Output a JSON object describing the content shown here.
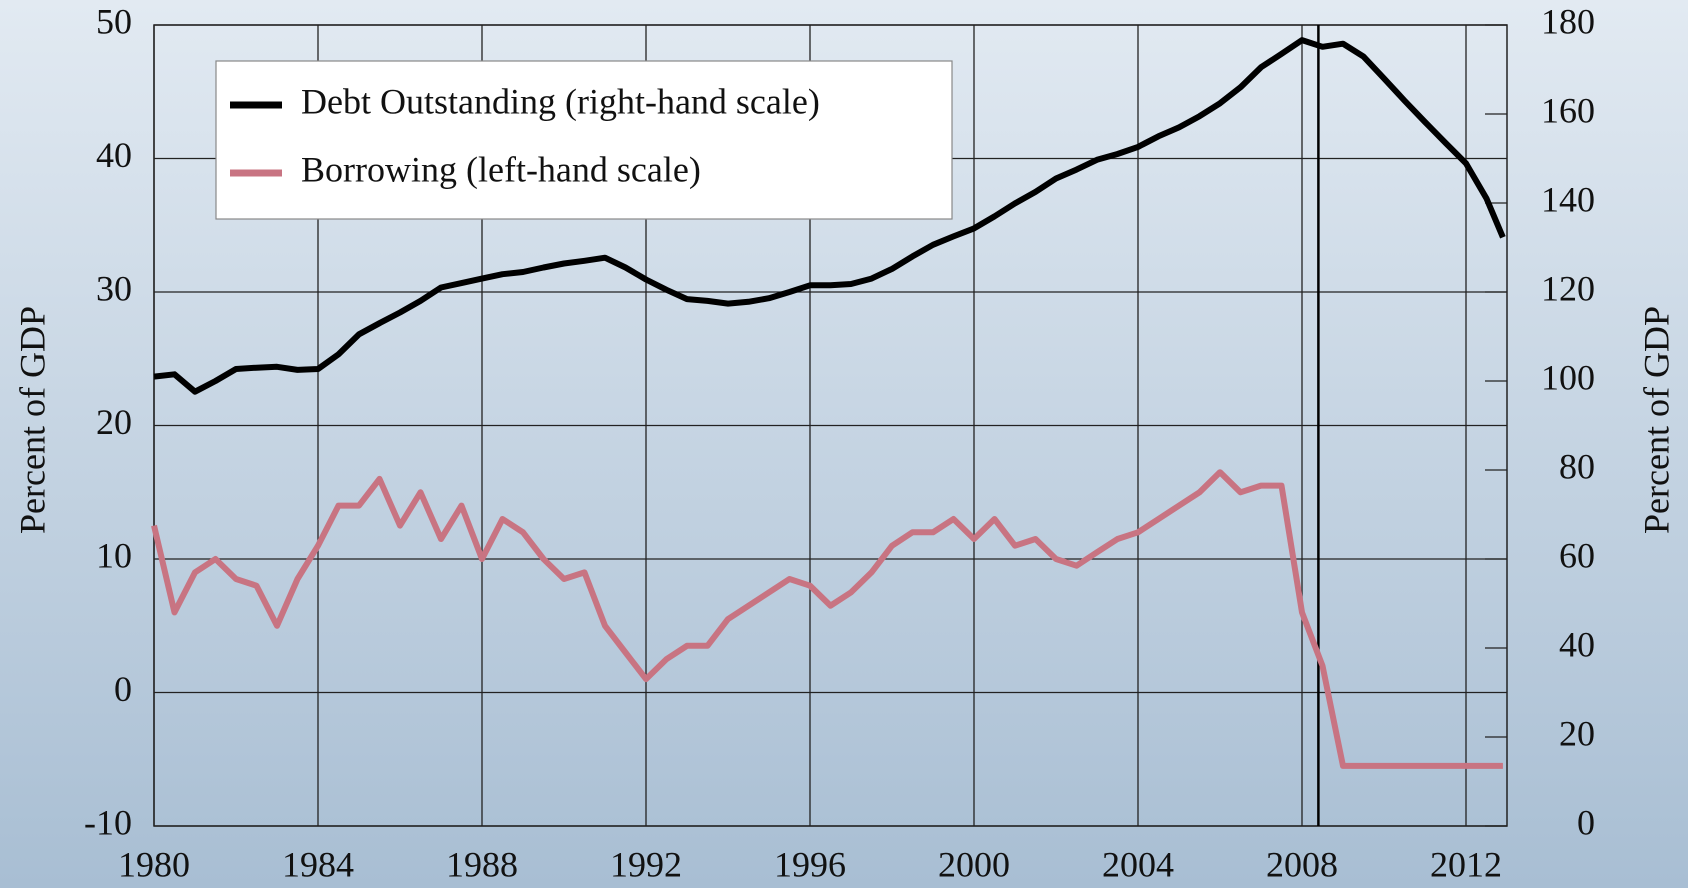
{
  "chart_data": {
    "type": "line",
    "ylabel": "Percent of GDP",
    "y2label": "Percent of GDP",
    "xlim": [
      1980,
      2013
    ],
    "xticks": [
      1980,
      1984,
      1988,
      1992,
      1996,
      2000,
      2004,
      2008,
      2012
    ],
    "ylim": [
      -10,
      50
    ],
    "yticks": [
      -10,
      0,
      10,
      20,
      30,
      40,
      50
    ],
    "y2lim": [
      0,
      180
    ],
    "y2ticks": [
      0,
      20,
      40,
      60,
      80,
      100,
      120,
      140,
      160,
      180
    ],
    "grid": true,
    "legend": "upper left",
    "vline": 2008.4,
    "x": [
      1980,
      1980.5,
      1981,
      1981.5,
      1982,
      1982.5,
      1983,
      1983.5,
      1984,
      1984.5,
      1985,
      1985.5,
      1986,
      1986.5,
      1987,
      1987.5,
      1988,
      1988.5,
      1989,
      1989.5,
      1990,
      1990.5,
      1991,
      1991.5,
      1992,
      1992.5,
      1993,
      1993.5,
      1994,
      1994.5,
      1995,
      1995.5,
      1996,
      1996.5,
      1997,
      1997.5,
      1998,
      1998.5,
      1999,
      1999.5,
      2000,
      2000.5,
      2001,
      2001.5,
      2002,
      2002.5,
      2003,
      2003.5,
      2004,
      2004.5,
      2005,
      2005.5,
      2006,
      2006.5,
      2007,
      2007.5,
      2008,
      2008.5,
      2009,
      2009.5,
      2010,
      2010.5,
      2011,
      2011.5,
      2012,
      2012.5,
      2012.9
    ],
    "series": [
      {
        "name": "Debt Outstanding (right-hand scale)",
        "color": "#000000",
        "axis": "y2",
        "values": [
          101,
          101.5,
          97.6,
          100,
          102.7,
          103,
          103.2,
          102.5,
          102.7,
          106,
          110.5,
          113,
          115.4,
          118,
          121,
          122,
          123,
          124,
          124.5,
          125.5,
          126.4,
          127,
          127.7,
          125.5,
          122.8,
          120.5,
          118.4,
          118,
          117.4,
          117.8,
          118.6,
          120,
          121.5,
          121.5,
          121.8,
          123,
          125.2,
          128,
          130.6,
          132.5,
          134.3,
          137,
          139.9,
          142.5,
          145.5,
          147.5,
          149.7,
          151,
          152.6,
          155,
          157,
          159.5,
          162.4,
          166,
          170.5,
          173.5,
          176.6,
          175.1,
          175.8,
          172.9,
          168,
          163,
          158.2,
          153.5,
          148.9,
          141,
          132.3
        ]
      },
      {
        "name": "Borrowing (left-hand scale)",
        "color": "#c87482",
        "axis": "y",
        "values": [
          12.5,
          6,
          9,
          10,
          8.5,
          8,
          5,
          8.5,
          11,
          14,
          14,
          16,
          12.5,
          15,
          11.5,
          14,
          10,
          13,
          12,
          10,
          8.5,
          9,
          5,
          3,
          1,
          2.5,
          3.5,
          3.5,
          5.5,
          6.5,
          7.5,
          8.5,
          8,
          6.5,
          7.5,
          9,
          11,
          12,
          12,
          13,
          11.5,
          13,
          11,
          11.5,
          10,
          9.5,
          10.5,
          11.5,
          12,
          13,
          14,
          15,
          16.5,
          15,
          15.5,
          15.5,
          6,
          2,
          -5.5,
          -5.5,
          -5.5,
          -5.5,
          -5.5,
          -5.5,
          -5.5,
          -5.5,
          -5.5
        ]
      }
    ]
  }
}
